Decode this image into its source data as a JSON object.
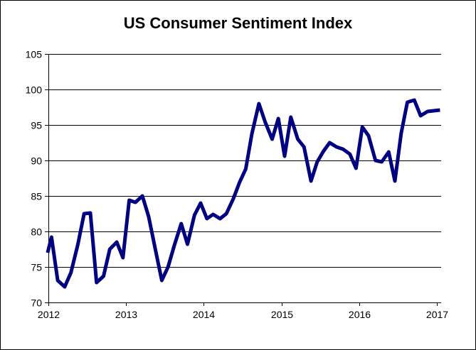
{
  "chart_data": {
    "type": "line",
    "title": "US Consumer Sentiment Index",
    "xlabel": "",
    "ylabel": "",
    "xlim": [
      2012,
      2017.1
    ],
    "ylim": [
      70,
      105
    ],
    "yticks": [
      70,
      75,
      80,
      85,
      90,
      95,
      100,
      105
    ],
    "xticks": [
      2012,
      2013,
      2014,
      2015,
      2016,
      2017
    ],
    "grid": "horizontal",
    "line_color": "#000080",
    "series": [
      {
        "name": "US Consumer Sentiment Index",
        "x": [
          2011.99,
          2012.04,
          2012.12,
          2012.21,
          2012.29,
          2012.38,
          2012.46,
          2012.54,
          2012.62,
          2012.71,
          2012.79,
          2012.88,
          2012.96,
          2013.04,
          2013.12,
          2013.21,
          2013.29,
          2013.38,
          2013.46,
          2013.54,
          2013.62,
          2013.71,
          2013.79,
          2013.88,
          2013.96,
          2014.04,
          2014.12,
          2014.21,
          2014.29,
          2014.38,
          2014.46,
          2014.54,
          2014.62,
          2014.71,
          2014.79,
          2014.88,
          2014.96,
          2015.04,
          2015.12,
          2015.21,
          2015.29,
          2015.38,
          2015.46,
          2015.54,
          2015.62,
          2015.71,
          2015.79,
          2015.88,
          2015.96,
          2016.04,
          2016.12,
          2016.21,
          2016.29,
          2016.38,
          2016.46,
          2016.54,
          2016.62,
          2016.71,
          2016.79,
          2016.88,
          2016.96,
          2017.04
        ],
        "values": [
          77.0,
          79.2,
          73.1,
          72.2,
          74.2,
          78.2,
          82.5,
          82.6,
          72.8,
          73.7,
          77.5,
          78.5,
          76.3,
          84.4,
          84.1,
          85.0,
          82.1,
          77.3,
          73.1,
          75.0,
          78.0,
          81.1,
          78.2,
          82.3,
          84.0,
          81.8,
          82.4,
          81.8,
          82.5,
          84.6,
          86.9,
          88.8,
          93.8,
          98.0,
          95.4,
          93.0,
          95.9,
          90.6,
          96.1,
          93.0,
          91.9,
          87.1,
          89.8,
          91.3,
          92.5,
          91.9,
          91.6,
          90.9,
          88.9,
          94.7,
          93.5,
          90.0,
          89.8,
          91.2,
          87.1,
          93.8,
          98.2,
          98.5,
          96.3,
          96.9,
          97.0,
          97.1
        ]
      }
    ]
  }
}
